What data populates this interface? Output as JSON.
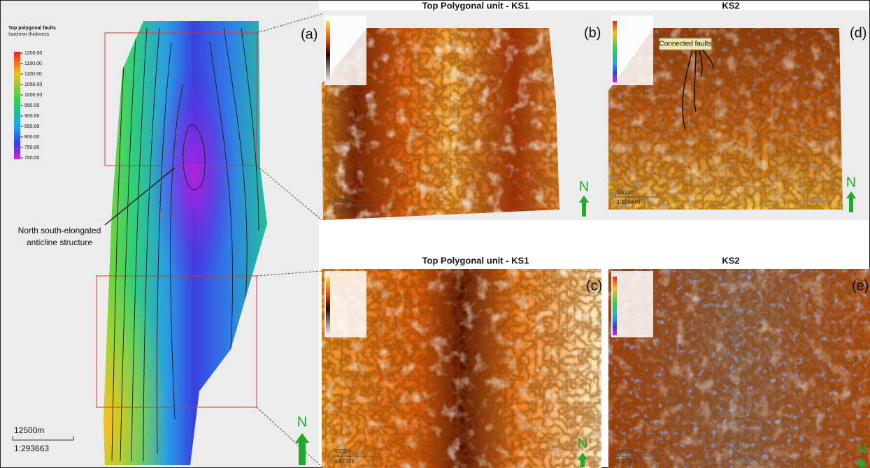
{
  "panel_a": {
    "label": "(a)",
    "legend_title": "Top polygonal faults",
    "legend_subtitle": "Isochron thickness",
    "legend_ticks": [
      "1200.00",
      "1150.00",
      "1100.00",
      "1050.00",
      "1000.00",
      "950.00",
      "900.00",
      "850.00",
      "800.00",
      "750.00",
      "700.00"
    ],
    "annotation": [
      "North south-elongated",
      "anticline structure"
    ],
    "scale_bar": "12500m",
    "scale": "1:293663",
    "north": "N"
  },
  "panel_b": {
    "title": "Top Polygonal unit - KS1",
    "label": "(b)",
    "scale_bar": "5000m",
    "scale": "1:105640",
    "north": "N"
  },
  "panel_c": {
    "title": "Top Polygonal unit - KS1",
    "label": "(c)",
    "scale_bar": "5000m",
    "scale": "1:87306",
    "north": "N"
  },
  "panel_d": {
    "title": "KS2",
    "label": "(d)",
    "annotation": "Connected faults",
    "scale_bar": "5000m",
    "scale": "1:105640",
    "north": "N"
  },
  "panel_e": {
    "title": "KS2",
    "label": "(e)",
    "scale_bar": "5000m",
    "scale": "1:87306",
    "north": "N"
  }
}
